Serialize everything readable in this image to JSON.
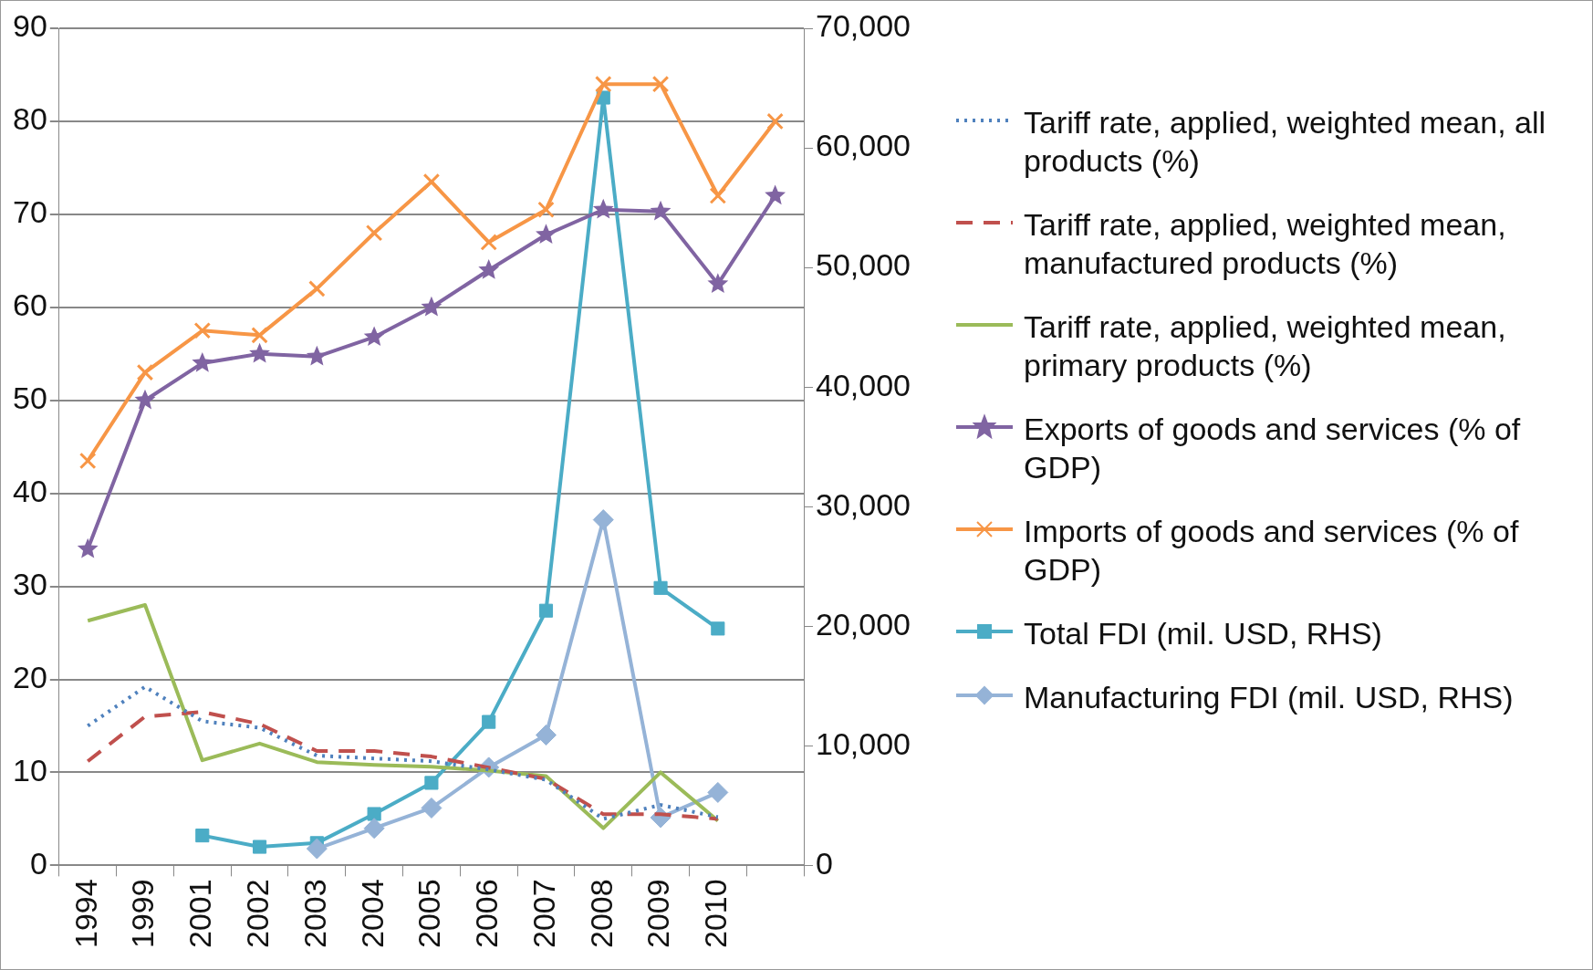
{
  "chart_data": {
    "type": "line",
    "categories": [
      "1994",
      "1999",
      "2001",
      "2002",
      "2003",
      "2004",
      "2005",
      "2006",
      "2007",
      "2008",
      "2009",
      "2010",
      null
    ],
    "series": [
      {
        "name": "Tariff rate, applied, weighted mean, all products (%)",
        "color": "#4f81bd",
        "line_style": "dotted",
        "marker": "none",
        "values": [
          15,
          19.2,
          15.5,
          14.8,
          11.8,
          11.5,
          11.2,
          10.3,
          9.2,
          5,
          6.5,
          5.2,
          null
        ]
      },
      {
        "name": "Tariff rate, applied, weighted mean, manufactured products (%)",
        "color": "#c0504d",
        "line_style": "dashed",
        "marker": "none",
        "values": [
          11.2,
          16,
          16.5,
          15.2,
          12.3,
          12.3,
          11.7,
          10.5,
          9.3,
          5.5,
          5.5,
          5,
          null
        ]
      },
      {
        "name": "Tariff rate, applied, weighted mean, primary products (%)",
        "color": "#9bbb59",
        "line_style": "solid",
        "marker": "none",
        "values": [
          26.3,
          28,
          11.3,
          13.1,
          11.1,
          10.8,
          10.6,
          10.2,
          9.6,
          4,
          10,
          4.8,
          null
        ]
      },
      {
        "name": "Exports of goods and services (% of GDP)",
        "color": "#8064a2",
        "line_style": "solid",
        "marker": "star",
        "values": [
          34,
          50,
          54,
          55,
          54.7,
          56.8,
          60,
          64,
          67.8,
          70.5,
          70.3,
          62.5,
          72
        ]
      },
      {
        "name": "Imports of goods and services (% of GDP)",
        "color": "#f79646",
        "line_style": "solid",
        "marker": "cross",
        "values": [
          43.5,
          53,
          57.5,
          57,
          62,
          68,
          73.5,
          67,
          70.5,
          84,
          84,
          72,
          80
        ]
      },
      {
        "name": "Total FDI (mil. USD, RHS)",
        "color": "#4bacc6",
        "line_style": "solid",
        "marker": "square",
        "axis": "y2",
        "values": [
          null,
          null,
          2500,
          1550,
          1870,
          4300,
          6900,
          12000,
          21300,
          64200,
          23200,
          19800,
          null
        ]
      },
      {
        "name": "Manufacturing FDI (mil. USD, RHS)",
        "color": "#95b3d7",
        "line_style": "solid",
        "marker": "diamond",
        "axis": "y2",
        "values": [
          null,
          null,
          null,
          null,
          1400,
          3100,
          4800,
          8200,
          10900,
          28900,
          4000,
          6100,
          null
        ]
      }
    ],
    "ylim": [
      0,
      90
    ],
    "yticks": [
      0,
      10,
      20,
      30,
      40,
      50,
      60,
      70,
      80,
      90
    ],
    "y2lim": [
      0,
      70000
    ],
    "y2ticks": [
      {
        "value": 0,
        "label": "0"
      },
      {
        "value": 10000,
        "label": "10,000"
      },
      {
        "value": 20000,
        "label": "20,000"
      },
      {
        "value": 30000,
        "label": "30,000"
      },
      {
        "value": 40000,
        "label": "40,000"
      },
      {
        "value": 50000,
        "label": "50,000"
      },
      {
        "value": 60000,
        "label": "60,000"
      },
      {
        "value": 70000,
        "label": "70,000"
      }
    ],
    "grid": "y",
    "legend": "right"
  }
}
